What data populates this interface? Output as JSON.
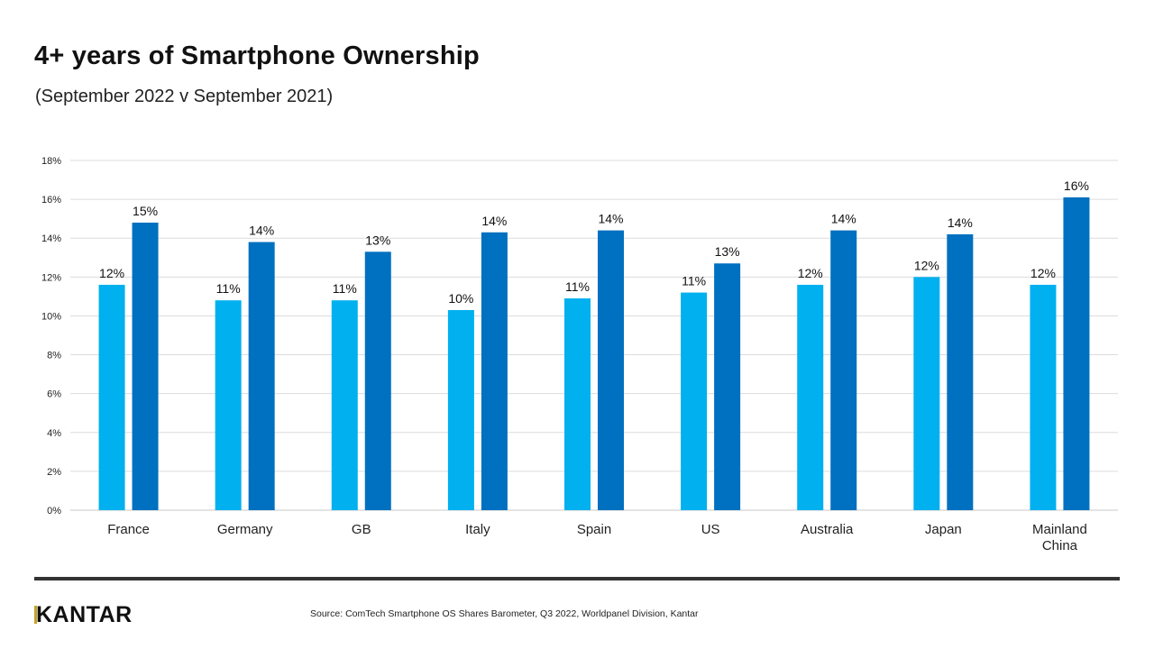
{
  "title": "4+ years of Smartphone Ownership",
  "subtitle": "(September 2022 v September 2021)",
  "source": "Source: ComTech Smartphone OS Shares Barometer, Q3 2022, Worldpanel Division, Kantar",
  "logo": "KANTAR",
  "chart_data": {
    "type": "bar",
    "categories": [
      "France",
      "Germany",
      "GB",
      "Italy",
      "Spain",
      "US",
      "Australia",
      "Japan",
      "Mainland China"
    ],
    "series": [
      {
        "values": [
          11.6,
          10.8,
          10.8,
          10.3,
          10.9,
          11.2,
          11.6,
          12.0,
          11.6
        ],
        "labels": [
          "12%",
          "11%",
          "11%",
          "10%",
          "11%",
          "11%",
          "12%",
          "12%",
          "12%"
        ],
        "color": "#00b0ef"
      },
      {
        "values": [
          14.8,
          13.8,
          13.3,
          14.3,
          14.4,
          12.7,
          14.4,
          14.2,
          16.1
        ],
        "labels": [
          "15%",
          "14%",
          "13%",
          "14%",
          "14%",
          "13%",
          "14%",
          "14%",
          "16%"
        ],
        "color": "#0070c0"
      }
    ],
    "ylim": [
      0,
      18
    ],
    "yticks": [
      "0%",
      "2%",
      "4%",
      "6%",
      "8%",
      "10%",
      "12%",
      "14%",
      "16%",
      "18%"
    ],
    "grid": true,
    "legend": "none"
  }
}
